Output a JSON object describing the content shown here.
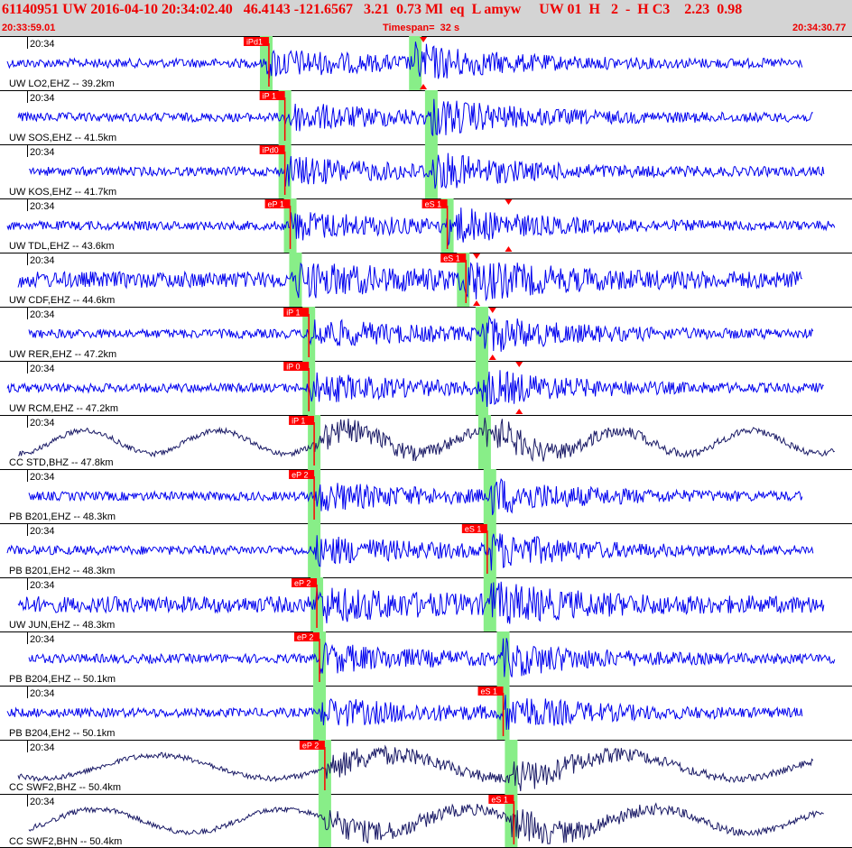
{
  "header": {
    "title": "61140951 UW 2016-04-10 20:34:02.40   46.4143 -121.6567   3.21  0.73 Ml  eq  L amyw     UW 01  H   2  -  H C3    2.23  0.98",
    "start_time": "20:33:59.01",
    "timespan": "Timespan=  32 s",
    "end_time": "20:34:30.77"
  },
  "colors": {
    "trace": "#0000ee",
    "trace_dark": "#1a1a66",
    "pick": "#ff0000",
    "window": "#88ee88",
    "header_bg": "#d4d4d4",
    "header_text": "#ee0000"
  },
  "chart_data": {
    "type": "seismogram",
    "start_label": "20:33:59.01",
    "end_label": "20:34:30.77",
    "timespan_s": 32,
    "channels": [
      {
        "time_label": "20:34",
        "label": "UW LO2,EHZ -- 39.2km",
        "color": "blue",
        "picks": [
          {
            "text": "iPd1",
            "t": 10.1
          }
        ],
        "s_marker": 15.9,
        "windows": [
          10.0,
          15.6
        ]
      },
      {
        "time_label": "20:34",
        "label": "UW SOS,EHZ -- 41.5km",
        "color": "blue",
        "picks": [
          {
            "text": "iP 1",
            "t": 10.7
          }
        ],
        "windows": [
          10.7,
          16.2
        ]
      },
      {
        "time_label": "20:34",
        "label": "UW KOS,EHZ -- 41.7km",
        "color": "blue",
        "picks": [
          {
            "text": "iPd0",
            "t": 10.7
          }
        ],
        "windows": [
          10.7,
          16.2
        ]
      },
      {
        "time_label": "20:34",
        "label": "UW TDL,EHZ -- 43.6km",
        "color": "blue",
        "picks": [
          {
            "text": "eP 1",
            "t": 10.9
          },
          {
            "text": "eS 1",
            "t": 16.8
          }
        ],
        "s_marker": 19.1,
        "windows": [
          10.9,
          16.8
        ]
      },
      {
        "time_label": "20:34",
        "label": "UW CDF,EHZ -- 44.6km",
        "color": "blue",
        "picks": [
          {
            "text": "eS 1",
            "t": 17.5
          }
        ],
        "s_marker": 17.9,
        "windows": [
          11.1,
          17.4
        ]
      },
      {
        "time_label": "20:34",
        "label": "UW RER,EHZ -- 47.2km",
        "color": "blue",
        "picks": [
          {
            "text": "iP 1",
            "t": 11.6
          }
        ],
        "s_marker": 18.5,
        "windows": [
          11.6,
          18.1
        ]
      },
      {
        "time_label": "20:34",
        "label": "UW RCM,EHZ -- 47.2km",
        "color": "blue",
        "picks": [
          {
            "text": "iP 0",
            "t": 11.6
          }
        ],
        "s_marker": 19.5,
        "windows": [
          11.6,
          18.1
        ]
      },
      {
        "time_label": "20:34",
        "label": "CC STD,BHZ -- 47.8km",
        "color": "dark",
        "picks": [
          {
            "text": "iP 1",
            "t": 11.8
          }
        ],
        "windows": [
          11.8,
          18.2
        ]
      },
      {
        "time_label": "20:34",
        "label": "PB B201,EHZ -- 48.3km",
        "color": "blue",
        "picks": [
          {
            "text": "eP 2",
            "t": 11.8
          }
        ],
        "windows": [
          11.8,
          18.4
        ]
      },
      {
        "time_label": "20:34",
        "label": "PB B201,EH2 -- 48.3km",
        "color": "blue",
        "picks": [
          {
            "text": "eS 1",
            "t": 18.3
          }
        ],
        "windows": [
          11.8,
          18.4
        ]
      },
      {
        "time_label": "20:34",
        "label": "UW JUN,EHZ -- 48.3km",
        "color": "blue",
        "picks": [
          {
            "text": "eP 2",
            "t": 11.9
          }
        ],
        "windows": [
          11.9,
          18.4
        ]
      },
      {
        "time_label": "20:34",
        "label": "PB B204,EHZ -- 50.1km",
        "color": "blue",
        "picks": [
          {
            "text": "eP 2",
            "t": 12.0
          }
        ],
        "windows": [
          12.0,
          18.9
        ]
      },
      {
        "time_label": "20:34",
        "label": "PB B204,EH2 -- 50.1km",
        "color": "blue",
        "picks": [
          {
            "text": "eS 1",
            "t": 18.9
          }
        ],
        "windows": [
          12.0,
          18.9
        ]
      },
      {
        "time_label": "20:34",
        "label": "CC SWF2,BHZ -- 50.4km",
        "color": "dark",
        "picks": [
          {
            "text": "eP 2",
            "t": 12.2
          }
        ],
        "windows": [
          12.2,
          19.2
        ]
      },
      {
        "time_label": "20:34",
        "label": "CC SWF2,BHN -- 50.4km",
        "color": "dark",
        "picks": [
          {
            "text": "eS 1",
            "t": 19.3
          }
        ],
        "windows": [
          12.2,
          19.2
        ]
      }
    ]
  }
}
